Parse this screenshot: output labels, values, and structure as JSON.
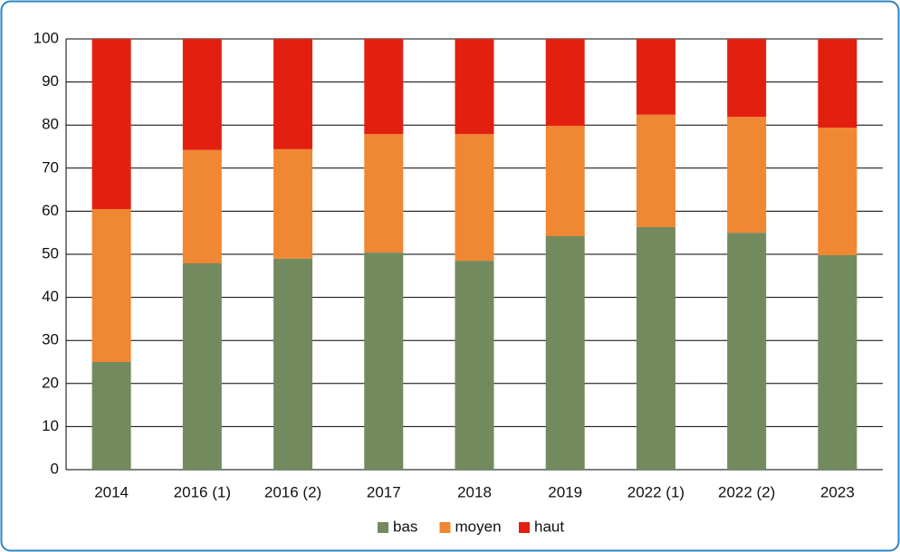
{
  "chart_data": {
    "type": "stacked_bar",
    "categories": [
      "2014",
      "2016 (1)",
      "2016 (2)",
      "2017",
      "2018",
      "2019",
      "2022 (1)",
      "2022 (2)",
      "2023"
    ],
    "series": [
      {
        "name": "bas",
        "color": "#738a5e",
        "values": [
          25,
          47.9,
          49,
          50.4,
          48.5,
          54.2,
          56.3,
          55,
          49.8
        ]
      },
      {
        "name": "moyen",
        "color": "#f08733",
        "values": [
          35.5,
          26.3,
          25.4,
          27.5,
          29.4,
          25.6,
          26.1,
          26.9,
          29.6
        ]
      },
      {
        "name": "haut",
        "color": "#e3200f",
        "values": [
          39.5,
          25.8,
          25.6,
          22.1,
          22.1,
          20.2,
          17.6,
          18.1,
          20.6
        ]
      }
    ],
    "ylim": [
      0,
      100
    ],
    "yticks": [
      0,
      10,
      20,
      30,
      40,
      50,
      60,
      70,
      80,
      90,
      100
    ],
    "grid": true,
    "legend": "bottom"
  }
}
